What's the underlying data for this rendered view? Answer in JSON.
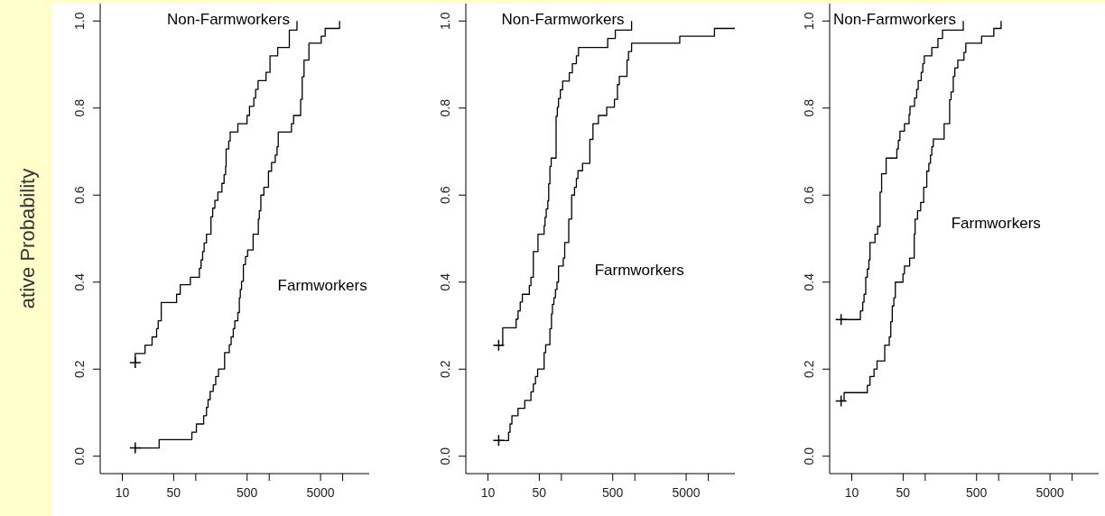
{
  "chart_data": [
    {
      "type": "step",
      "ylabel": "ative Probability",
      "xlim": [
        5,
        23000
      ],
      "ylim": [
        -0.04,
        1.04
      ],
      "log": "x",
      "grid": false,
      "legend": false,
      "line_style": "solid",
      "marker": "none",
      "xticks": [
        10,
        50,
        {
          "value": 100,
          "label": null
        },
        500,
        {
          "value": 1000,
          "label": null
        },
        5000,
        {
          "value": 10000,
          "label": null
        }
      ],
      "yticks": [
        {
          "value": 0,
          "label": "0.0"
        },
        {
          "value": 0.2,
          "label": "0.2"
        },
        {
          "value": 0.4,
          "label": "0.4"
        },
        {
          "value": 0.6,
          "label": "0.6"
        },
        {
          "value": 0.8,
          "label": "0.8"
        },
        {
          "value": 1,
          "label": "1.0"
        }
      ],
      "series": [
        {
          "name": "Non-Farmworkers",
          "color": "#000000",
          "x": [
            15,
            15,
            20.4,
            25.4,
            29.3,
            30.8,
            33.9,
            54.8,
            61.5,
            84.4,
            112,
            118,
            124,
            130,
            140,
            161,
            170,
            182,
            200,
            227,
            243,
            255,
            259,
            281,
            294,
            374,
            499,
            539,
            617,
            653,
            705,
            905,
            1025,
            1304,
            1879,
            2388
          ],
          "values": [
            0.215,
            0.236,
            0.255,
            0.274,
            0.293,
            0.311,
            0.353,
            0.372,
            0.394,
            0.411,
            0.432,
            0.451,
            0.47,
            0.49,
            0.51,
            0.55,
            0.57,
            0.588,
            0.607,
            0.627,
            0.647,
            0.666,
            0.706,
            0.724,
            0.745,
            0.764,
            0.783,
            0.804,
            0.823,
            0.843,
            0.863,
            0.882,
            0.92,
            0.939,
            0.979,
            1.0
          ]
        },
        {
          "name": "Farmworkers",
          "color": "#000000",
          "x": [
            15,
            31.7,
            88.5,
            102,
            128,
            140,
            147,
            157,
            173,
            187,
            204,
            247,
            286,
            303,
            324,
            340,
            374,
            392,
            404,
            420,
            445,
            475,
            508,
            604,
            711,
            733,
            769,
            846,
            977,
            1076,
            1208,
            1279,
            1328,
            2009,
            2148,
            2679,
            2813,
            2979,
            3473,
            5102,
            5776,
            9078
          ],
          "values": [
            0.019,
            0.038,
            0.055,
            0.074,
            0.093,
            0.112,
            0.13,
            0.149,
            0.164,
            0.183,
            0.2,
            0.238,
            0.256,
            0.274,
            0.293,
            0.311,
            0.33,
            0.364,
            0.383,
            0.402,
            0.44,
            0.459,
            0.474,
            0.51,
            0.545,
            0.564,
            0.6,
            0.618,
            0.655,
            0.675,
            0.692,
            0.711,
            0.745,
            0.764,
            0.783,
            0.82,
            0.872,
            0.91,
            0.949,
            0.965,
            0.983,
            1.0
          ]
        },
        {
          "type": "scatter",
          "marker": "cross",
          "color": "#000000",
          "x": [
            15,
            15
          ],
          "values": [
            0.215,
            0.019
          ]
        }
      ]
    },
    {
      "type": "step",
      "xlim": [
        5,
        23000
      ],
      "ylim": [
        -0.04,
        1.04
      ],
      "log": "x",
      "grid": false,
      "legend": false,
      "line_style": "solid",
      "marker": "none",
      "xticks": [
        10,
        50,
        {
          "value": 100,
          "label": null
        },
        500,
        {
          "value": 1000,
          "label": null
        },
        5000,
        {
          "value": 10000,
          "label": null
        }
      ],
      "yticks": [
        {
          "value": 0,
          "label": "0.0"
        },
        {
          "value": 0.2,
          "label": "0.2"
        },
        {
          "value": 0.4,
          "label": "0.4"
        },
        {
          "value": 0.6,
          "label": "0.6"
        },
        {
          "value": 0.8,
          "label": "0.8"
        },
        {
          "value": 1,
          "label": "1.0"
        }
      ],
      "series": [
        {
          "name": "Non-Farmworkers",
          "color": "#000000",
          "x": [
            14,
            15.9,
            24.2,
            25.7,
            27.5,
            29.4,
            36.6,
            38.5,
            41.5,
            48,
            58.2,
            59.9,
            62.2,
            65.3,
            67.2,
            69.8,
            72.6,
            84.7,
            88,
            91.4,
            96.8,
            104,
            128,
            141,
            160,
            171,
            427,
            542,
            903
          ],
          "values": [
            0.255,
            0.295,
            0.315,
            0.334,
            0.354,
            0.372,
            0.392,
            0.411,
            0.47,
            0.51,
            0.53,
            0.549,
            0.568,
            0.587,
            0.626,
            0.666,
            0.685,
            0.781,
            0.802,
            0.822,
            0.842,
            0.862,
            0.881,
            0.902,
            0.92,
            0.939,
            0.96,
            0.979,
            1.0
          ]
        },
        {
          "name": "Farmworkers",
          "color": "#000000",
          "x": [
            14,
            19.1,
            20,
            21.2,
            25.7,
            31.7,
            38.5,
            41.5,
            44.4,
            47.5,
            58.2,
            61.1,
            69.8,
            73.3,
            75.5,
            79.1,
            83,
            87.1,
            91.4,
            106,
            111,
            126,
            138,
            151,
            160,
            168,
            194,
            244,
            269,
            319,
            414,
            527,
            580,
            615,
            782,
            820,
            903,
            4090,
            12130,
            23000
          ],
          "values": [
            0.036,
            0.055,
            0.074,
            0.093,
            0.11,
            0.128,
            0.148,
            0.166,
            0.183,
            0.2,
            0.238,
            0.256,
            0.293,
            0.327,
            0.349,
            0.364,
            0.383,
            0.4,
            0.437,
            0.455,
            0.491,
            0.545,
            0.6,
            0.618,
            0.638,
            0.656,
            0.673,
            0.728,
            0.764,
            0.783,
            0.802,
            0.82,
            0.854,
            0.873,
            0.91,
            0.93,
            0.949,
            0.965,
            0.983,
            0.983
          ]
        },
        {
          "type": "scatter",
          "marker": "cross",
          "color": "#000000",
          "x": [
            14,
            14
          ],
          "values": [
            0.255,
            0.036
          ]
        }
      ]
    },
    {
      "type": "step",
      "xlim": [
        5,
        23000
      ],
      "ylim": [
        -0.04,
        1.04
      ],
      "log": "x",
      "grid": false,
      "legend": false,
      "line_style": "solid",
      "marker": "none",
      "xticks": [
        10,
        50,
        {
          "value": 100,
          "label": null
        },
        500,
        {
          "value": 1000,
          "label": null
        },
        5000,
        {
          "value": 10000,
          "label": null
        }
      ],
      "yticks": [
        {
          "value": 0,
          "label": "0.0"
        },
        {
          "value": 0.2,
          "label": "0.2"
        },
        {
          "value": 0.4,
          "label": "0.4"
        },
        {
          "value": 0.6,
          "label": "0.6"
        },
        {
          "value": 0.8,
          "label": "0.8"
        },
        {
          "value": 1,
          "label": "1.0"
        }
      ],
      "series": [
        {
          "name": "Non-Farmworkers",
          "color": "#000000",
          "x": [
            7.16,
            13.1,
            14.1,
            14.7,
            15.5,
            16.3,
            17.1,
            17.7,
            20.7,
            22.5,
            24.3,
            25.5,
            29.4,
            41.1,
            43.1,
            45.3,
            52.2,
            60.3,
            62.1,
            71.6,
            76.5,
            80.3,
            88.3,
            92.7,
            97.2,
            123,
            149,
            172,
            330
          ],
          "values": [
            0.314,
            0.334,
            0.354,
            0.372,
            0.411,
            0.43,
            0.451,
            0.491,
            0.51,
            0.528,
            0.607,
            0.649,
            0.685,
            0.706,
            0.726,
            0.747,
            0.764,
            0.785,
            0.804,
            0.823,
            0.843,
            0.863,
            0.882,
            0.902,
            0.92,
            0.939,
            0.96,
            0.979,
            1.0
          ]
        },
        {
          "name": "Farmworkers",
          "color": "#000000",
          "x": [
            7.16,
            7.87,
            16.3,
            17.7,
            20.1,
            22.1,
            28.1,
            32.4,
            34,
            35.6,
            37.4,
            39.2,
            49.8,
            52.2,
            61.4,
            70.9,
            72.9,
            78.7,
            86.7,
            95.3,
            105,
            112,
            118,
            123,
            129,
            181,
            215,
            225,
            241,
            253,
            278,
            337,
            357,
            586,
            859,
            1079
          ],
          "values": [
            0.127,
            0.146,
            0.163,
            0.183,
            0.2,
            0.219,
            0.255,
            0.274,
            0.309,
            0.345,
            0.364,
            0.4,
            0.419,
            0.437,
            0.455,
            0.51,
            0.545,
            0.564,
            0.583,
            0.618,
            0.655,
            0.673,
            0.692,
            0.711,
            0.729,
            0.764,
            0.819,
            0.837,
            0.873,
            0.892,
            0.91,
            0.928,
            0.949,
            0.965,
            0.983,
            1.0
          ]
        },
        {
          "type": "scatter",
          "marker": "cross",
          "color": "#000000",
          "x": [
            7.16,
            7.16
          ],
          "values": [
            0.314,
            0.127
          ]
        }
      ]
    }
  ]
}
